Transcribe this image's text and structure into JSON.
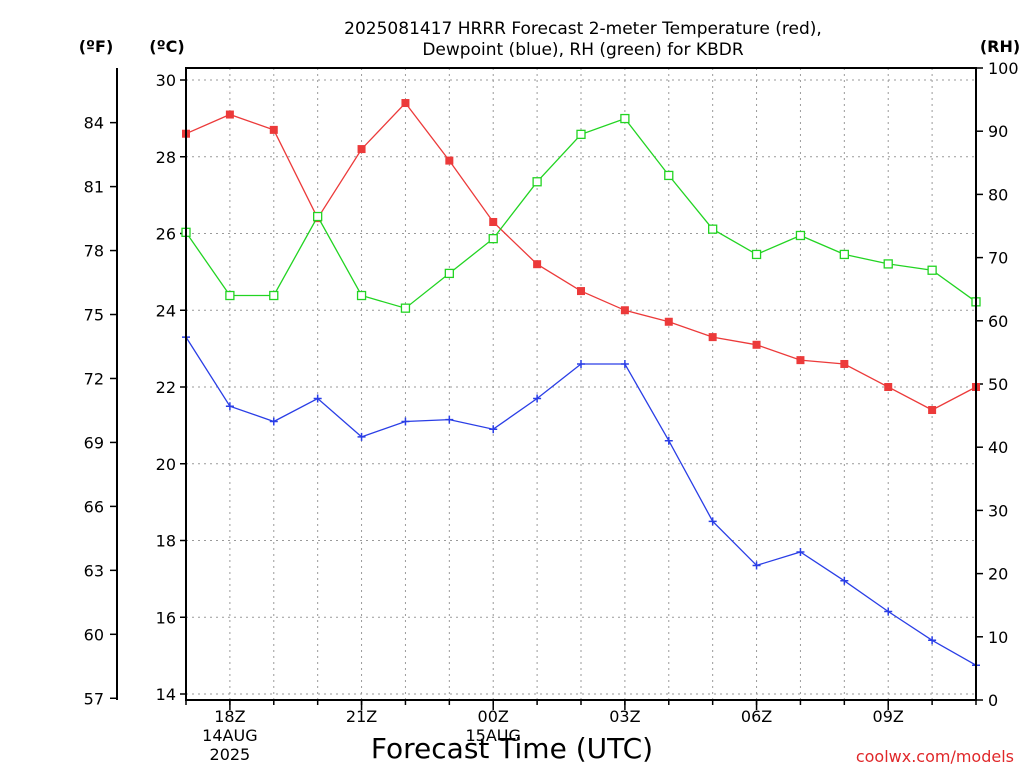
{
  "chart_data": {
    "type": "line",
    "title_line1": "2025081417 HRRR Forecast 2-meter Temperature (red),",
    "title_line2": "Dewpoint (blue), RH (green) for KBDR",
    "xlabel": "Forecast Time (UTC)",
    "left_units_f": "(ºF)",
    "left_units_c": "(ºC)",
    "right_units": "(RH)",
    "credit": "coolwx.com/models",
    "x_hours": [
      0,
      1,
      2,
      3,
      4,
      5,
      6,
      7,
      8,
      9,
      10,
      11,
      12,
      13,
      14,
      15,
      16,
      17,
      18
    ],
    "x_range": [
      0,
      18
    ],
    "x_ticks": [
      {
        "hour": 1,
        "lines": [
          "18Z",
          "14AUG",
          "2025"
        ]
      },
      {
        "hour": 4,
        "lines": [
          "21Z"
        ]
      },
      {
        "hour": 7,
        "lines": [
          "00Z",
          "15AUG"
        ]
      },
      {
        "hour": 10,
        "lines": [
          "03Z"
        ]
      },
      {
        "hour": 13,
        "lines": [
          "06Z"
        ]
      },
      {
        "hour": 16,
        "lines": [
          "09Z"
        ]
      }
    ],
    "celsius_axis": {
      "range": [
        13.8,
        30.5
      ],
      "ticks": [
        14,
        16,
        18,
        20,
        22,
        24,
        26,
        28,
        30
      ]
    },
    "fahrenheit_ticks": [
      57,
      60,
      63,
      66,
      69,
      72,
      75,
      78,
      81,
      84
    ],
    "rh_axis": {
      "range": [
        0,
        100
      ],
      "ticks": [
        0,
        10,
        20,
        30,
        40,
        50,
        60,
        70,
        80,
        90,
        100
      ]
    },
    "grid": true,
    "series": [
      {
        "name": "Temperature",
        "color": "#ec3a3a",
        "axis": "celsius",
        "marker": "filled-square",
        "values": [
          28.6,
          29.1,
          28.7,
          26.4,
          28.2,
          29.4,
          27.9,
          26.3,
          25.2,
          24.5,
          24.0,
          23.7,
          23.3,
          23.1,
          22.7,
          22.6,
          22.0,
          21.4,
          22.0
        ]
      },
      {
        "name": "Dewpoint",
        "color": "#2a3ee6",
        "axis": "celsius",
        "marker": "plus",
        "values": [
          23.3,
          21.5,
          21.1,
          21.7,
          20.7,
          21.1,
          21.15,
          20.9,
          21.7,
          22.6,
          22.6,
          20.6,
          18.5,
          17.35,
          17.7,
          16.95,
          16.15,
          15.4,
          14.75
        ]
      },
      {
        "name": "RH",
        "color": "#22d422",
        "axis": "rh",
        "marker": "open-square",
        "values": [
          74,
          64,
          64,
          76.5,
          64,
          62,
          67.5,
          73,
          82,
          89.5,
          92,
          83,
          74.5,
          70.5,
          73.5,
          70.5,
          69,
          68,
          63
        ]
      }
    ]
  }
}
